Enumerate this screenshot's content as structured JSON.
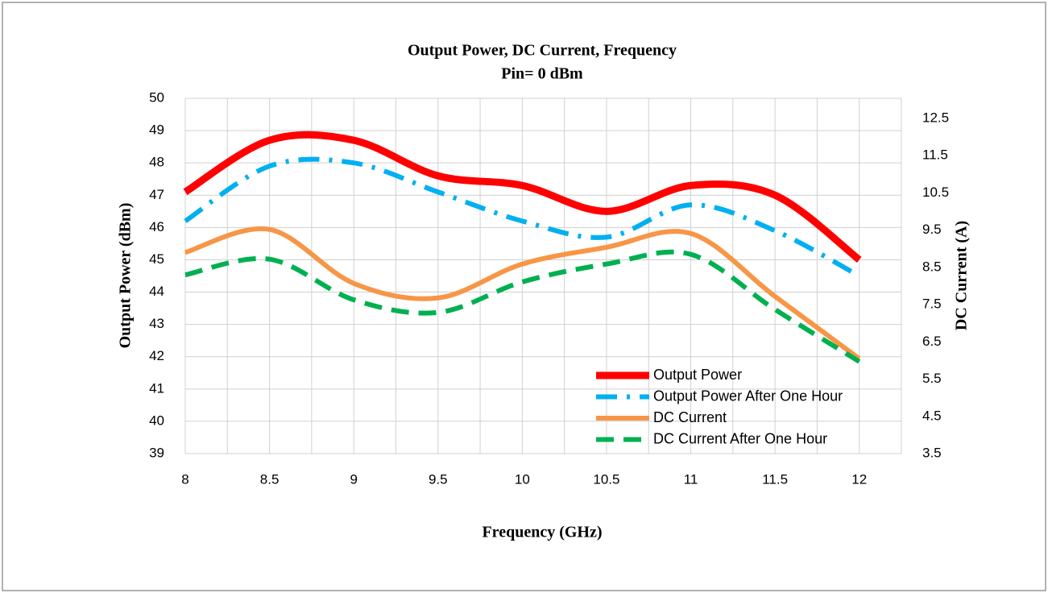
{
  "chart_data": {
    "type": "line",
    "title": "Output  Power, DC Current,  Frequency",
    "subtitle": "Pin= 0 dBm",
    "x_label": "Frequency (GHz)",
    "y_label": "Output  Power (dBm)",
    "y2_label": "DC Current  (A)",
    "x": [
      8,
      8.5,
      9,
      9.5,
      10,
      10.5,
      11,
      11.5,
      12
    ],
    "xlim": [
      8,
      12.25
    ],
    "xticks": [
      8,
      8.5,
      9,
      9.5,
      10,
      10.5,
      11,
      11.5,
      12
    ],
    "x_minor_ticks": [
      8.25,
      8.75,
      9.25,
      9.75,
      10.25,
      10.75,
      11.25,
      11.75,
      12.25
    ],
    "ylim": [
      39,
      50
    ],
    "yticks": [
      39,
      40,
      41,
      42,
      43,
      44,
      45,
      46,
      47,
      48,
      49,
      50
    ],
    "y2lim": [
      3.5,
      13.04
    ],
    "y2ticks": [
      3.5,
      4.5,
      5.5,
      6.5,
      7.5,
      8.5,
      9.5,
      10.5,
      11.5,
      12.5
    ],
    "grid": true,
    "legend": "lower right",
    "series": [
      {
        "name": "Output Power",
        "color": "#ff0000",
        "dash": "solid",
        "values": [
          47.1,
          48.7,
          48.7,
          47.6,
          47.3,
          46.5,
          47.3,
          47.0,
          45.0
        ]
      },
      {
        "name": "Output Power After One Hour",
        "color": "#00b0f0",
        "dash": "dashdot",
        "values": [
          46.2,
          47.9,
          48.0,
          47.1,
          46.2,
          45.7,
          46.7,
          45.9,
          44.5
        ]
      },
      {
        "name": "DC Current",
        "color": "#f79646",
        "dash": "solid",
        "axis": "y2",
        "values": [
          8.9,
          9.52,
          8.07,
          7.68,
          8.59,
          9.04,
          9.41,
          7.72,
          6.05
        ]
      },
      {
        "name": "DC Current After One Hour",
        "color": "#00b050",
        "dash": "dashed",
        "axis": "y2",
        "values": [
          8.3,
          8.72,
          7.63,
          7.29,
          8.11,
          8.59,
          8.85,
          7.37,
          5.97
        ]
      }
    ]
  }
}
